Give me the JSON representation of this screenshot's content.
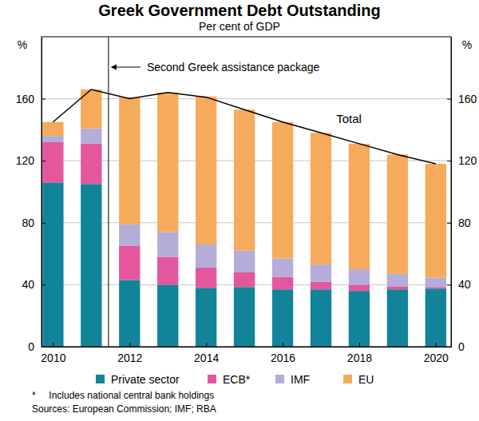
{
  "chart_data": {
    "type": "bar",
    "title": "Greek Government Debt Outstanding",
    "subtitle": "Per cent of GDP",
    "y_label": "%",
    "y2_label": "%",
    "stacked": true,
    "grid": true,
    "legend": "bottom",
    "x": [
      2010,
      2011,
      2012,
      2013,
      2014,
      2015,
      2016,
      2017,
      2018,
      2019,
      2020
    ],
    "xlim": [
      2009.7,
      2020.4
    ],
    "xticks": [
      2010,
      2012,
      2014,
      2016,
      2018,
      2020
    ],
    "ylim": [
      0,
      200
    ],
    "yticks": [
      0,
      40,
      80,
      120,
      160
    ],
    "y2lim": [
      0,
      200
    ],
    "y2ticks": [
      0,
      40,
      80,
      120,
      160
    ],
    "series": [
      {
        "name": "Private sector",
        "type": "bar",
        "color": "#12849a",
        "values": [
          106,
          105,
          43,
          40,
          38,
          38.5,
          37,
          37,
          36,
          37,
          37.5
        ]
      },
      {
        "name": "ECB*",
        "type": "bar",
        "color": "#e4579c",
        "values": [
          26,
          26,
          22,
          18,
          13,
          9.5,
          8,
          5,
          4,
          2,
          1
        ]
      },
      {
        "name": "IMF",
        "type": "bar",
        "color": "#b4acd9",
        "values": [
          4,
          10,
          14,
          16,
          15,
          14,
          12,
          11,
          10,
          8,
          6
        ]
      },
      {
        "name": "EU",
        "type": "bar",
        "color": "#f6ab5c",
        "values": [
          9,
          25,
          82,
          90,
          95.5,
          91,
          88,
          85,
          81,
          77,
          73.5
        ]
      },
      {
        "name": "Total",
        "type": "line",
        "color": "#000000",
        "values": [
          145,
          166,
          160,
          164,
          161,
          153,
          145,
          138,
          131,
          124,
          118
        ]
      }
    ],
    "annotations": [
      {
        "text": "Second Greek assistance package",
        "x": 2011.45
      }
    ],
    "footnote": "*     Includes national central bank holdings",
    "source": "Sources: European Commission; IMF; RBA"
  }
}
